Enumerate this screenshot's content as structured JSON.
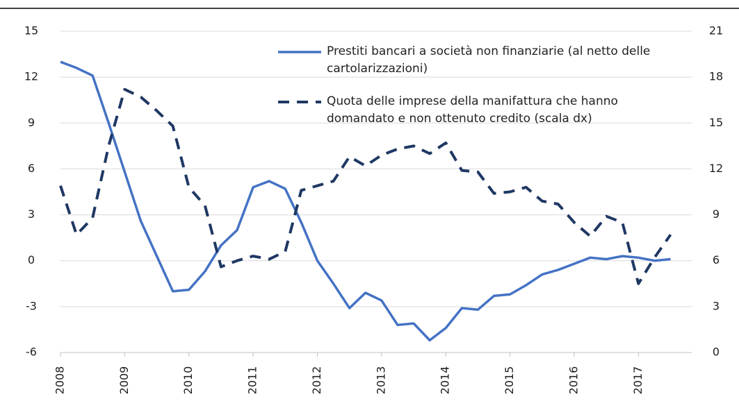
{
  "chart_data": {
    "type": "line",
    "x": [
      2008,
      2008.25,
      2008.5,
      2008.75,
      2009,
      2009.25,
      2009.5,
      2009.75,
      2010,
      2010.25,
      2010.5,
      2010.75,
      2011,
      2011.25,
      2011.5,
      2011.75,
      2012,
      2012.25,
      2012.5,
      2012.75,
      2013,
      2013.25,
      2013.5,
      2013.75,
      2014,
      2014.25,
      2014.5,
      2014.75,
      2015,
      2015.25,
      2015.5,
      2015.75,
      2016,
      2016.25,
      2016.5,
      2016.75,
      2017,
      2017.25,
      2017.5
    ],
    "xlim": [
      2008,
      2017.83
    ],
    "xticks": [
      2008,
      2009,
      2010,
      2011,
      2012,
      2013,
      2014,
      2015,
      2016,
      2017
    ],
    "ylim": [
      -6,
      15
    ],
    "yticks": [
      -6,
      -3,
      0,
      3,
      6,
      9,
      12,
      15
    ],
    "y2lim": [
      0,
      21
    ],
    "y2ticks": [
      0,
      3,
      6,
      9,
      12,
      15,
      18,
      21
    ],
    "grid": true,
    "series": [
      {
        "name": "Prestiti bancari a società non finanziarie (al netto delle cartolarizzazioni)",
        "color": "#4472c4",
        "style": "solid",
        "values": [
          13.0,
          12.6,
          12.1,
          9.0,
          5.8,
          2.6,
          0.3,
          -2.0,
          -1.9,
          -0.7,
          1.0,
          2.0,
          4.8,
          5.2,
          4.7,
          2.5,
          0.0,
          -1.5,
          -3.1,
          -2.1,
          -2.6,
          -4.2,
          -4.1,
          -5.2,
          -4.4,
          -3.1,
          -3.2,
          -2.3,
          -2.2,
          -1.6,
          -0.9,
          -0.6,
          -0.2,
          0.2,
          0.1,
          0.3,
          0.2,
          0.0,
          0.1
        ]
      },
      {
        "name": "Quota delle imprese della manifattura che hanno domandato e non ottenuto credito (scala dx)",
        "color": "#1f3864",
        "style": "dashed",
        "axis": "y2",
        "values": [
          10.9,
          7.7,
          8.8,
          13.5,
          17.2,
          16.7,
          15.8,
          14.8,
          10.8,
          9.6,
          5.6,
          6.0,
          6.3,
          6.1,
          6.6,
          10.6,
          10.9,
          11.2,
          12.8,
          12.2,
          12.9,
          13.3,
          13.5,
          13.0,
          13.7,
          11.9,
          11.8,
          10.4,
          10.5,
          10.8,
          9.9,
          9.7,
          8.5,
          7.6,
          8.9,
          8.5,
          4.5,
          6.2,
          7.7
        ]
      }
    ]
  }
}
